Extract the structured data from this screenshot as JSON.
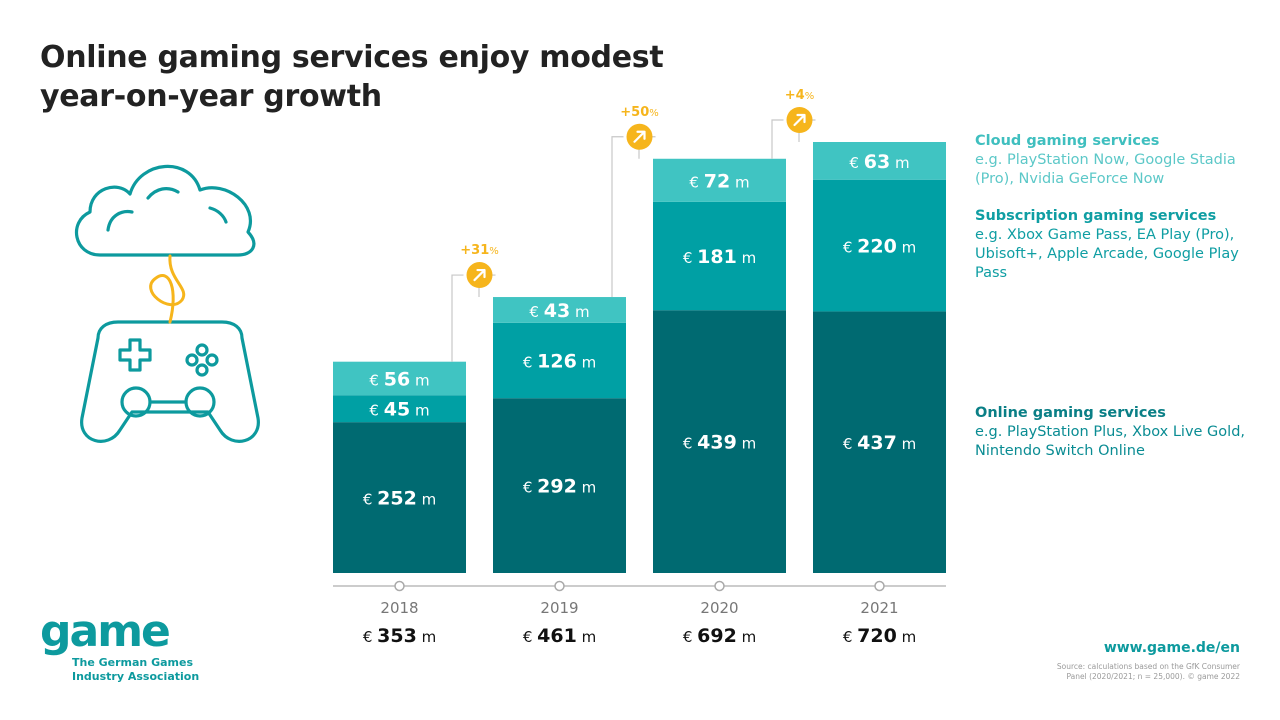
{
  "title_line1": "Online gaming services enjoy modest",
  "title_line2": "year-on-year growth",
  "colors": {
    "online": "#006a71",
    "subscription": "#00a0a4",
    "cloud": "#40c4c2",
    "growth": "#f6b51c",
    "accent_text": "#0d9a9e",
    "axis": "#bbbbbb"
  },
  "currency_symbol": "€",
  "unit": "m",
  "chart_data": {
    "type": "bar",
    "stacked": true,
    "categories": [
      "2018",
      "2019",
      "2020",
      "2021"
    ],
    "series": [
      {
        "name": "Online gaming services",
        "values": [
          252,
          292,
          439,
          437
        ]
      },
      {
        "name": "Subscription gaming services",
        "values": [
          45,
          126,
          181,
          220
        ]
      },
      {
        "name": "Cloud gaming services",
        "values": [
          56,
          43,
          72,
          63
        ]
      }
    ],
    "totals": [
      353,
      461,
      692,
      720
    ],
    "growth": [
      {
        "from": "2018",
        "to": "2019",
        "label": "+31",
        "suffix": "%"
      },
      {
        "from": "2019",
        "to": "2020",
        "label": "+50",
        "suffix": "%"
      },
      {
        "from": "2020",
        "to": "2021",
        "label": "+4",
        "suffix": "%"
      }
    ],
    "ylim": [
      0,
      720
    ],
    "legend_position": "right",
    "grid": false
  },
  "legend": [
    {
      "title": "Cloud gaming services",
      "desc": "e.g. PlayStation Now, Google Stadia (Pro), Nvidia GeForce Now",
      "title_color": "#3fbfbf",
      "desc_color": "#5cc8c8"
    },
    {
      "title": "Subscription gaming services",
      "desc": "e.g. Xbox Game Pass, EA Play (Pro), Ubisoft+, Apple Arcade, Google Play Pass",
      "title_color": "#0f9ea3",
      "desc_color": "#0f9ea3"
    },
    {
      "title": "Online gaming services",
      "desc": "e.g. PlayStation Plus, Xbox Live Gold, Nintendo Switch Online",
      "title_color": "#0a7f86",
      "desc_color": "#0a8c93"
    }
  ],
  "logo": {
    "wordmark": "game",
    "line1": "The German Games",
    "line2": "Industry Association"
  },
  "url": "www.game.de/en",
  "source_line1": "Source: calculations based on the GfK Consumer",
  "source_line2": "Panel (2020/2021; n = 25,000). © game 2022"
}
